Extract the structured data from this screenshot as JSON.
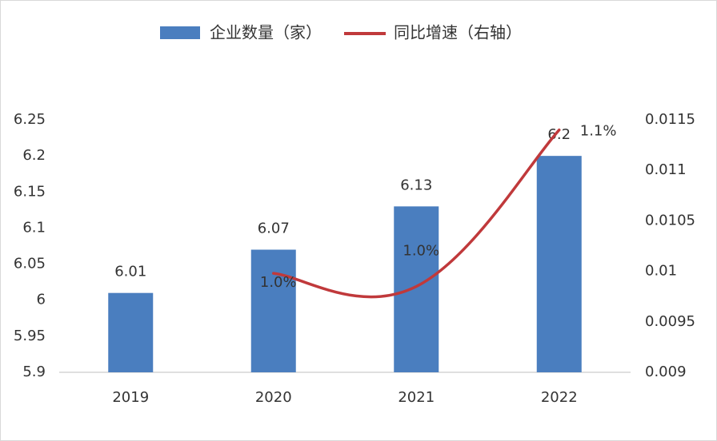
{
  "chart_data": {
    "type": "bar+line",
    "categories": [
      "2019",
      "2020",
      "2021",
      "2022"
    ],
    "series": [
      {
        "name": "企业数量（家）",
        "type": "bar",
        "color": "#4a7ebf",
        "values": [
          6.01,
          6.07,
          6.13,
          6.2
        ]
      },
      {
        "name": "同比增速（右轴）",
        "type": "line",
        "axis": "y2",
        "color": "#c0393b",
        "values": [
          null,
          0.00998,
          0.00985,
          0.0114
        ],
        "value_labels": [
          null,
          "1.0%",
          "1.0%",
          "1.1%"
        ]
      }
    ],
    "ylim": [
      5.9,
      6.25
    ],
    "yticks": [
      5.9,
      5.95,
      6,
      6.05,
      6.1,
      6.15,
      6.2,
      6.25
    ],
    "y2lim": [
      0.009,
      0.0115
    ],
    "y2ticks": [
      0.009,
      0.0095,
      0.01,
      0.0105,
      0.011,
      0.0115
    ],
    "legend": "top"
  }
}
